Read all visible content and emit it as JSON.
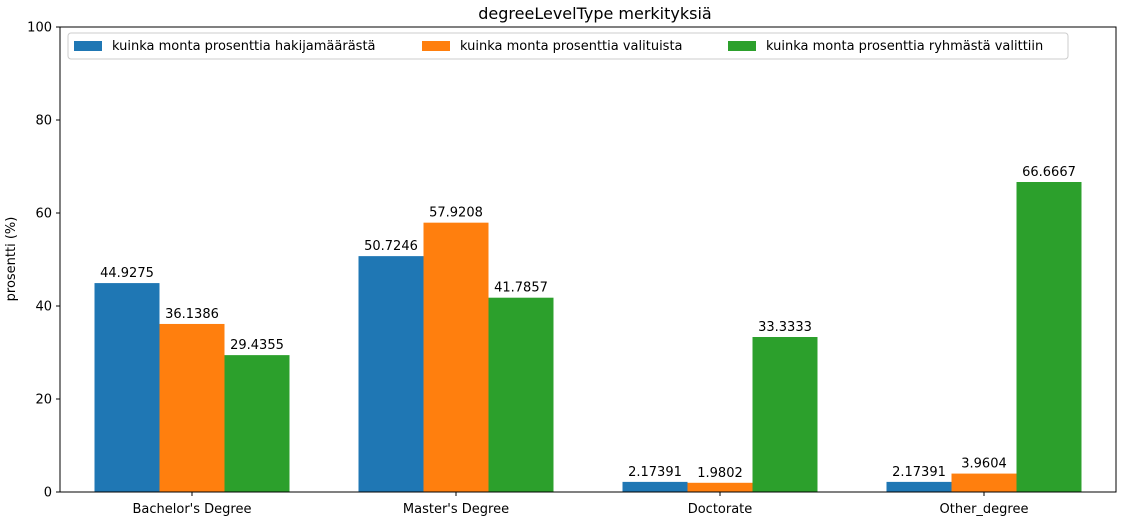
{
  "chart_data": {
    "type": "bar",
    "title": "degreeLevelType merkityksiä",
    "xlabel": "",
    "ylabel": "prosentti (%)",
    "ylim": [
      0,
      100
    ],
    "yticks": [
      0,
      20,
      40,
      60,
      80,
      100
    ],
    "categories": [
      "Bachelor's Degree",
      "Master's Degree",
      "Doctorate",
      "Other_degree"
    ],
    "series": [
      {
        "name": "kuinka monta prosenttia hakijamäärästä",
        "color": "#1f77b4",
        "values": [
          44.9275,
          50.7246,
          2.17391,
          2.17391
        ],
        "labels": [
          "44.9275",
          "50.7246",
          "2.17391",
          "2.17391"
        ]
      },
      {
        "name": "kuinka monta prosenttia valituista",
        "color": "#ff7f0e",
        "values": [
          36.1386,
          57.9208,
          1.9802,
          3.9604
        ],
        "labels": [
          "36.1386",
          "57.9208",
          "1.9802",
          "3.9604"
        ]
      },
      {
        "name": "kuinka monta prosenttia ryhmästä valittiin",
        "color": "#2ca02c",
        "values": [
          29.4355,
          41.7857,
          33.3333,
          66.6667
        ],
        "labels": [
          "29.4355",
          "41.7857",
          "33.3333",
          "66.6667"
        ]
      }
    ],
    "legend_position": "top-left",
    "grid": false
  }
}
